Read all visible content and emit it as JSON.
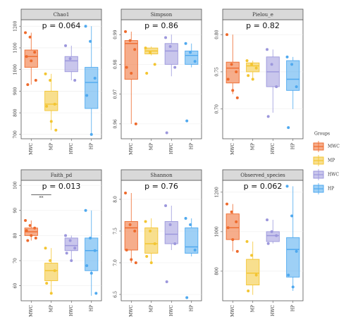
{
  "legend": {
    "title": "Groups",
    "groups": [
      {
        "name": "MWC",
        "color": "#ee6a2c"
      },
      {
        "name": "MP",
        "color": "#f3c531"
      },
      {
        "name": "HWC",
        "color": "#9c97dc"
      },
      {
        "name": "HP",
        "color": "#4fa9ef"
      }
    ]
  },
  "chart_data": [
    {
      "type": "box",
      "title": "Chao1",
      "annotation": "p = 0.064",
      "categories": [
        "MWC",
        "MP",
        "HWC",
        "HP"
      ],
      "ylim": [
        680,
        1230
      ],
      "yticks": [
        700,
        800,
        900,
        1000,
        1100,
        1200
      ],
      "grid": true,
      "boxes": [
        {
          "whislo": 930,
          "q1": 1010,
          "med": 1060,
          "q3": 1090,
          "whishi": 1170,
          "points": [
            1170,
            1150,
            1080,
            1060,
            1040,
            950,
            930
          ]
        },
        {
          "whislo": 720,
          "q1": 810,
          "med": 840,
          "q3": 900,
          "whishi": 980,
          "points": [
            980,
            950,
            840,
            830,
            760,
            720
          ]
        },
        {
          "whislo": 950,
          "q1": 990,
          "med": 1040,
          "q3": 1060,
          "whishi": 1110,
          "points": [
            1110,
            1050,
            950
          ]
        },
        {
          "whislo": 700,
          "q1": 820,
          "med": 940,
          "q3": 1010,
          "whishi": 1200,
          "points": [
            1200,
            1130,
            960,
            880,
            700
          ]
        }
      ]
    },
    {
      "type": "box",
      "title": "Simpson",
      "annotation": "p = 0.86",
      "categories": [
        "MWC",
        "MP",
        "HWC",
        "HP"
      ],
      "ylim": [
        0.955,
        0.995
      ],
      "yticks": [
        0.96,
        0.97,
        0.98,
        0.99
      ],
      "grid": true,
      "boxes": [
        {
          "whislo": 0.96,
          "q1": 0.975,
          "med": 0.987,
          "q3": 0.988,
          "whishi": 0.991,
          "points": [
            0.991,
            0.988,
            0.985,
            0.979,
            0.977,
            0.96
          ]
        },
        {
          "whislo": 0.983,
          "q1": 0.9835,
          "med": 0.9845,
          "q3": 0.9855,
          "whishi": 0.986,
          "points": [
            0.9855,
            0.984,
            0.98,
            0.977
          ]
        },
        {
          "whislo": 0.976,
          "q1": 0.98,
          "med": 0.9845,
          "q3": 0.987,
          "whishi": 0.99,
          "points": [
            0.989,
            0.986,
            0.979,
            0.957
          ]
        },
        {
          "whislo": 0.979,
          "q1": 0.98,
          "med": 0.983,
          "q3": 0.9845,
          "whishi": 0.987,
          "points": [
            0.987,
            0.984,
            0.981,
            0.961
          ]
        }
      ]
    },
    {
      "type": "box",
      "title": "Pielou_e",
      "annotation": "p = 0.82",
      "categories": [
        "MWC",
        "MP",
        "HWC",
        "HP"
      ],
      "ylim": [
        0.66,
        0.82
      ],
      "yticks": [
        {
          "value": 0.7,
          "label": "0.70"
        },
        {
          "value": 0.75,
          "label": "0.75"
        },
        {
          "value": 0.8,
          "label": "0.80"
        }
      ],
      "grid": true,
      "boxes": [
        {
          "whislo": 0.72,
          "q1": 0.735,
          "med": 0.755,
          "q3": 0.763,
          "whishi": 0.8,
          "points": [
            0.8,
            0.76,
            0.75,
            0.74,
            0.725,
            0.715
          ]
        },
        {
          "whislo": 0.74,
          "q1": 0.75,
          "med": 0.758,
          "q3": 0.762,
          "whishi": 0.765,
          "points": [
            0.765,
            0.76,
            0.755,
            0.745,
            0.74
          ]
        },
        {
          "whislo": 0.695,
          "q1": 0.73,
          "med": 0.75,
          "q3": 0.77,
          "whishi": 0.78,
          "points": [
            0.78,
            0.76,
            0.73,
            0.69
          ]
        },
        {
          "whislo": 0.7,
          "q1": 0.725,
          "med": 0.74,
          "q3": 0.765,
          "whishi": 0.77,
          "points": [
            0.77,
            0.76,
            0.73,
            0.675
          ]
        }
      ]
    },
    {
      "type": "box",
      "title": "Faith_pd",
      "annotation": "p = 0.013",
      "signif": "**",
      "categories": [
        "MWC",
        "MP",
        "HWC",
        "HP"
      ],
      "ylim": [
        54,
        102
      ],
      "yticks": [
        60,
        70,
        80,
        90,
        100
      ],
      "grid": true,
      "boxes": [
        {
          "whislo": 78,
          "q1": 80,
          "med": 81.5,
          "q3": 83,
          "whishi": 86,
          "points": [
            86,
            84,
            83,
            82,
            80,
            79,
            78
          ]
        },
        {
          "whislo": 57,
          "q1": 62,
          "med": 66,
          "q3": 69,
          "whishi": 75,
          "points": [
            75,
            70,
            66,
            61,
            57
          ]
        },
        {
          "whislo": 70,
          "q1": 74,
          "med": 76,
          "q3": 79,
          "whishi": 80,
          "points": [
            80,
            78,
            75,
            73,
            70
          ]
        },
        {
          "whislo": 56,
          "q1": 66,
          "med": 74,
          "q3": 79,
          "whishi": 90,
          "points": [
            90,
            79,
            74,
            68,
            65,
            57
          ]
        }
      ]
    },
    {
      "type": "box",
      "title": "Shannon",
      "annotation": "p = 0.76",
      "categories": [
        "MWC",
        "MP",
        "HWC",
        "HP"
      ],
      "ylim": [
        6.4,
        8.3
      ],
      "yticks": [
        6.5,
        {
          "value": 7,
          "label": "7.0"
        },
        7.5,
        {
          "value": 8,
          "label": "8.0"
        }
      ],
      "grid": true,
      "boxes": [
        {
          "whislo": 7,
          "q1": 7.2,
          "med": 7.55,
          "q3": 7.65,
          "whishi": 8.1,
          "points": [
            8.1,
            7.6,
            7.5,
            7.2,
            7.05,
            7
          ]
        },
        {
          "whislo": 7,
          "q1": 7.15,
          "med": 7.3,
          "q3": 7.55,
          "whishi": 7.7,
          "points": [
            7.65,
            7.5,
            7.3,
            7.1,
            7
          ]
        },
        {
          "whislo": 7.2,
          "q1": 7.3,
          "med": 7.45,
          "q3": 7.65,
          "whishi": 7.9,
          "points": [
            7.9,
            7.6,
            7.3,
            6.7
          ]
        },
        {
          "whislo": 7.1,
          "q1": 7.15,
          "med": 7.25,
          "q3": 7.55,
          "whishi": 7.7,
          "points": [
            7.7,
            7.6,
            7.2,
            6.45
          ]
        }
      ]
    },
    {
      "type": "box",
      "title": "Observed_species",
      "annotation": "p = 0.062",
      "categories": [
        "MWC",
        "MP",
        "HWC",
        "HP"
      ],
      "ylim": [
        650,
        1260
      ],
      "yticks": [
        800,
        1000,
        1200
      ],
      "grid": true,
      "boxes": [
        {
          "whislo": 900,
          "q1": 960,
          "med": 1020,
          "q3": 1090,
          "whishi": 1140,
          "points": [
            1140,
            1100,
            1050,
            1020,
            960,
            900
          ]
        },
        {
          "whislo": 680,
          "q1": 730,
          "med": 790,
          "q3": 860,
          "whishi": 950,
          "points": [
            950,
            880,
            780,
            700
          ]
        },
        {
          "whislo": 940,
          "q1": 950,
          "med": 980,
          "q3": 1000,
          "whishi": 1060,
          "points": [
            1060,
            1000,
            980,
            940
          ]
        },
        {
          "whislo": 700,
          "q1": 770,
          "med": 910,
          "q3": 970,
          "whishi": 1230,
          "points": [
            1230,
            1080,
            900,
            780,
            720
          ]
        }
      ]
    }
  ]
}
